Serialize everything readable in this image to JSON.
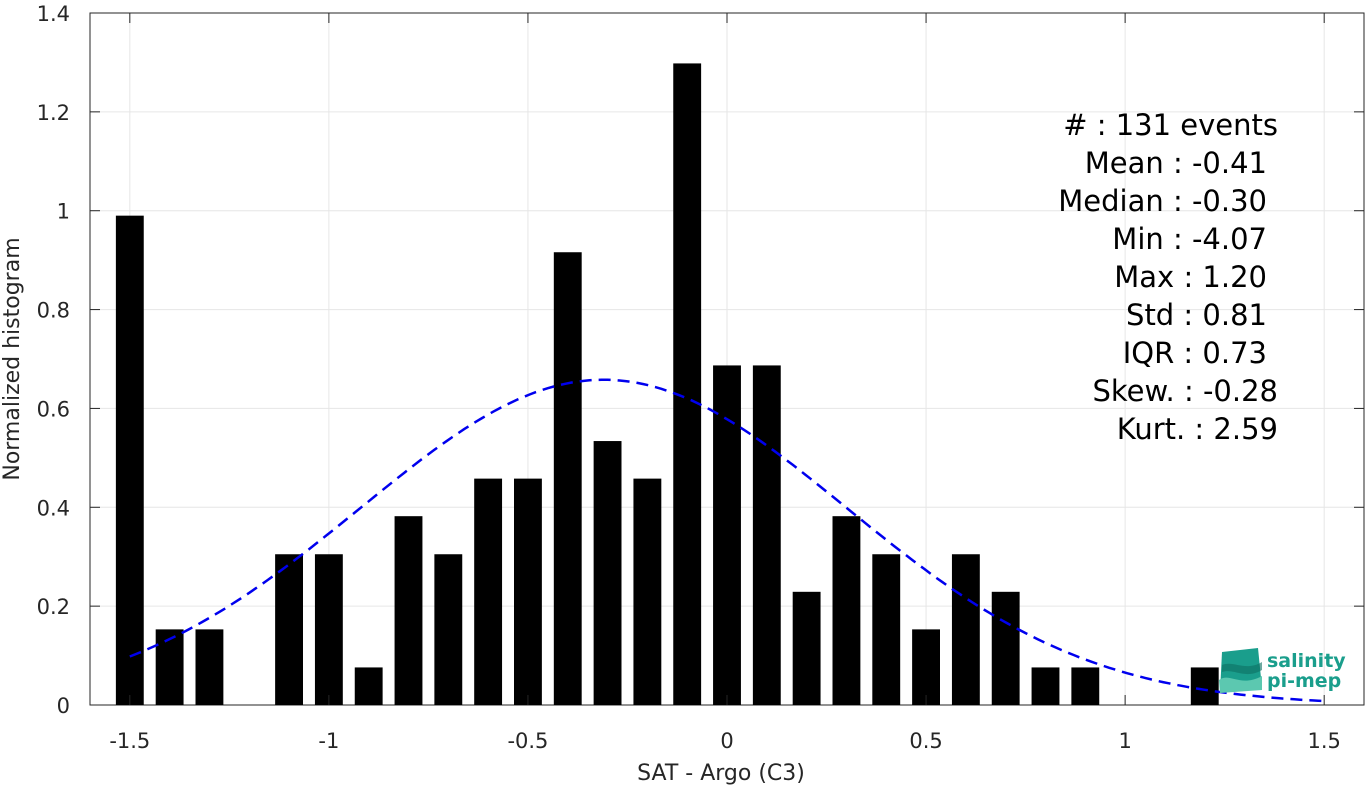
{
  "chart_data": {
    "type": "bar",
    "xlabel": "SAT - Argo (C3)",
    "ylabel": "Normalized histogram",
    "xlim": [
      -1.6,
      1.6
    ],
    "ylim": [
      0,
      1.4
    ],
    "x_ticks": [
      -1.5,
      -1,
      -0.5,
      0,
      0.5,
      1,
      1.5
    ],
    "x_tick_labels": [
      "-1.5",
      "-1",
      "-0.5",
      "0",
      "0.5",
      "1",
      "1.5"
    ],
    "y_ticks": [
      0,
      0.2,
      0.4,
      0.6,
      0.8,
      1,
      1.2,
      1.4
    ],
    "y_tick_labels": [
      "0",
      "0.2",
      "0.4",
      "0.6",
      "0.8",
      "1",
      "1.2",
      "1.4"
    ],
    "grid": true,
    "bar_width": 0.07,
    "bars": {
      "x": [
        -1.5,
        -1.4,
        -1.3,
        -1.1,
        -1.0,
        -0.9,
        -0.8,
        -0.7,
        -0.6,
        -0.5,
        -0.4,
        -0.3,
        -0.2,
        -0.1,
        0.0,
        0.1,
        0.2,
        0.3,
        0.4,
        0.5,
        0.6,
        0.7,
        0.8,
        0.9,
        1.2
      ],
      "values": [
        0.99,
        0.153,
        0.153,
        0.305,
        0.305,
        0.076,
        0.382,
        0.305,
        0.458,
        0.458,
        0.916,
        0.534,
        0.458,
        1.298,
        0.687,
        0.687,
        0.229,
        0.382,
        0.305,
        0.153,
        0.305,
        0.229,
        0.076,
        0.076,
        0.076
      ],
      "color": "#000000"
    },
    "fit_curve": {
      "style": "dashed",
      "color": "#0000ee",
      "x_range": [
        -1.5,
        1.5
      ],
      "mean": -0.31,
      "sigma": 0.61,
      "peak": 0.658
    },
    "annotations": [
      "#  : 131 events",
      "Mean : -0.41",
      "Median : -0.30",
      "Min : -4.07",
      "Max : 1.20",
      "Std : 0.81",
      "IQR : 0.73",
      "Skew. : -0.28",
      "Kurt. : 2.59"
    ]
  },
  "logo": {
    "line1": "salinity",
    "line2": "pi-mep",
    "colors": [
      "#1a9e8c",
      "#5cc8b0",
      "#0e6f62"
    ]
  }
}
